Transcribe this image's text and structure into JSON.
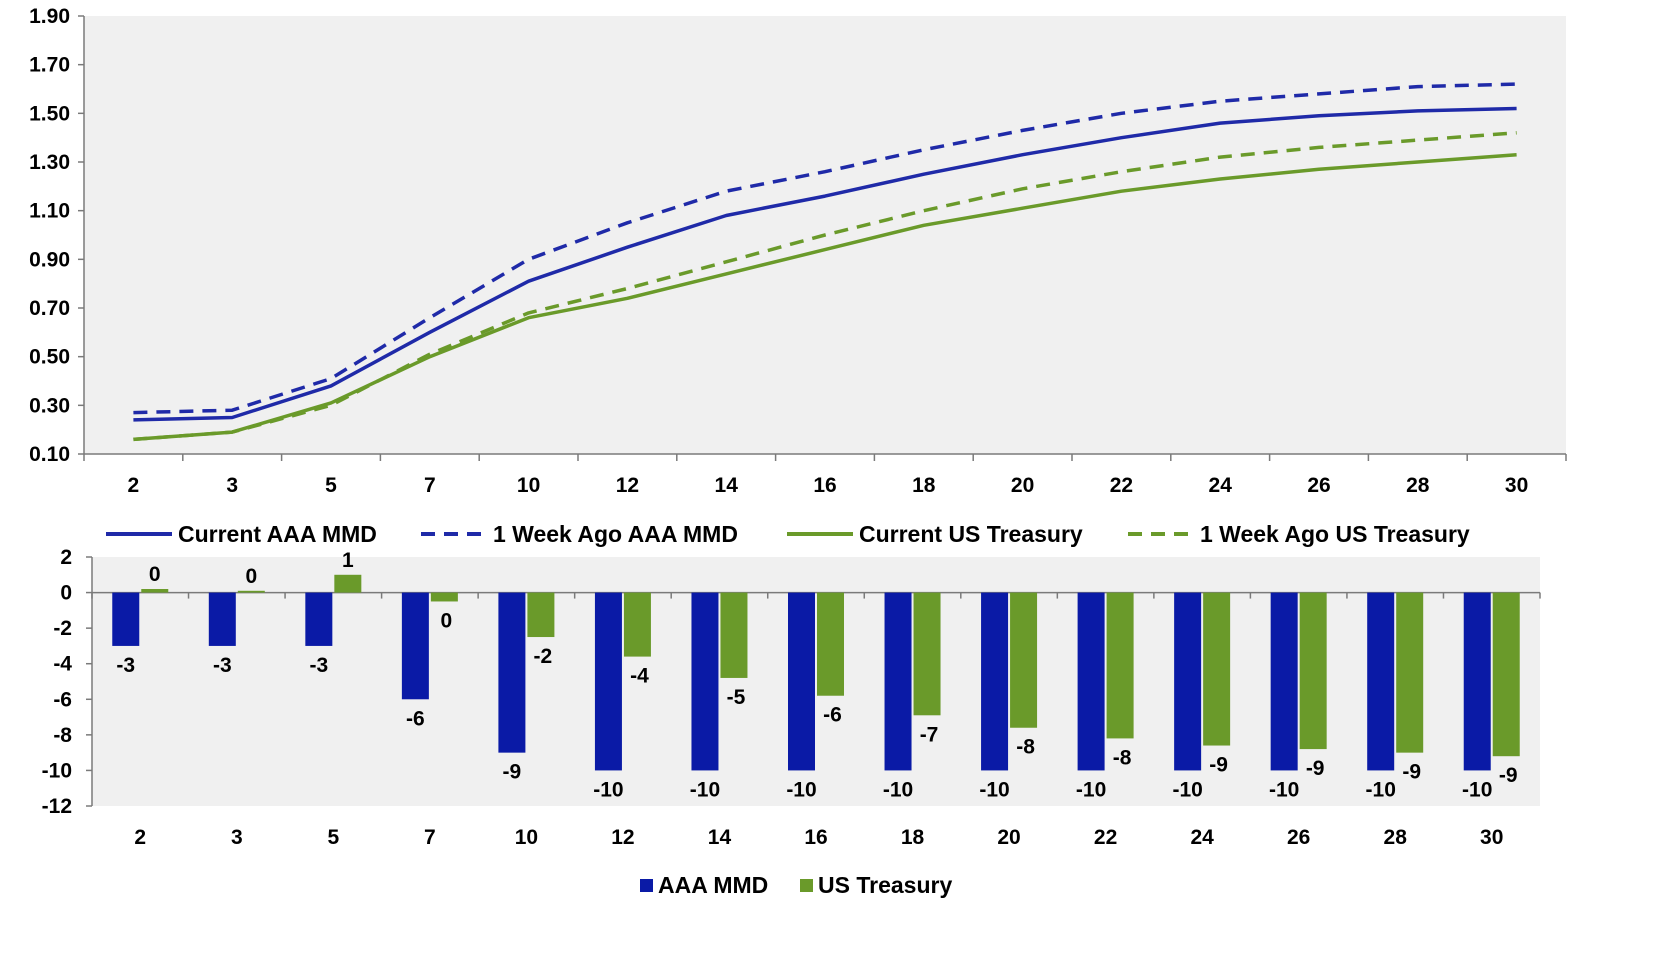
{
  "chart_data": [
    {
      "type": "line",
      "categories": [
        "2",
        "3",
        "5",
        "7",
        "10",
        "12",
        "14",
        "16",
        "18",
        "20",
        "22",
        "24",
        "26",
        "28",
        "30"
      ],
      "ylim": [
        0.1,
        1.9
      ],
      "yticks": [
        "1.90",
        "1.70",
        "1.50",
        "1.30",
        "1.10",
        "0.90",
        "0.70",
        "0.50",
        "0.30",
        "0.10"
      ],
      "grid": false,
      "legend_position": "bottom",
      "series": [
        {
          "name": "Current AAA MMD",
          "color": "#1f2aa8",
          "dash": false,
          "values": [
            0.24,
            0.25,
            0.38,
            0.6,
            0.81,
            0.95,
            1.08,
            1.16,
            1.25,
            1.33,
            1.4,
            1.46,
            1.49,
            1.51,
            1.52
          ]
        },
        {
          "name": "1 Week Ago AAA MMD",
          "color": "#1f2aa8",
          "dash": true,
          "values": [
            0.27,
            0.28,
            0.41,
            0.66,
            0.9,
            1.05,
            1.18,
            1.26,
            1.35,
            1.43,
            1.5,
            1.55,
            1.58,
            1.61,
            1.62
          ]
        },
        {
          "name": "Current US Treasury",
          "color": "#6a9a2a",
          "dash": false,
          "values": [
            0.16,
            0.19,
            0.31,
            0.5,
            0.66,
            0.74,
            0.84,
            0.94,
            1.04,
            1.11,
            1.18,
            1.23,
            1.27,
            1.3,
            1.33
          ]
        },
        {
          "name": "1 Week Ago US Treasury",
          "color": "#6a9a2a",
          "dash": true,
          "values": [
            0.16,
            0.19,
            0.3,
            0.51,
            0.68,
            0.78,
            0.89,
            1.0,
            1.1,
            1.19,
            1.26,
            1.32,
            1.36,
            1.39,
            1.42
          ]
        }
      ]
    },
    {
      "type": "bar",
      "categories": [
        "2",
        "3",
        "5",
        "7",
        "10",
        "12",
        "14",
        "16",
        "18",
        "20",
        "22",
        "24",
        "26",
        "28",
        "30"
      ],
      "ylim": [
        -12,
        2
      ],
      "yticks": [
        "2",
        "0",
        "-2",
        "-4",
        "-6",
        "-8",
        "-10",
        "-12"
      ],
      "grid": false,
      "legend_position": "bottom",
      "series": [
        {
          "name": "AAA MMD",
          "color": "#0a1aa6",
          "values": [
            -3,
            -3,
            -3,
            -6,
            -9,
            -10,
            -10,
            -10,
            -10,
            -10,
            -10,
            -10,
            -10,
            -10,
            -10
          ],
          "labels": [
            "-3",
            "-3",
            "-3",
            "-6",
            "-9",
            "-10",
            "-10",
            "-10",
            "-10",
            "-10",
            "-10",
            "-10",
            "-10",
            "-10",
            "-10"
          ]
        },
        {
          "name": "US Treasury",
          "color": "#6a9a2a",
          "values": [
            0.2,
            0.1,
            1.0,
            -0.5,
            -2.5,
            -3.6,
            -4.8,
            -5.8,
            -6.9,
            -7.6,
            -8.2,
            -8.6,
            -8.8,
            -9.0,
            -9.2
          ],
          "labels": [
            "0",
            "0",
            "1",
            "0",
            "-2",
            "-4",
            "-5",
            "-6",
            "-7",
            "-8",
            "-8",
            "-9",
            "-9",
            "-9",
            "-9"
          ]
        }
      ]
    }
  ]
}
